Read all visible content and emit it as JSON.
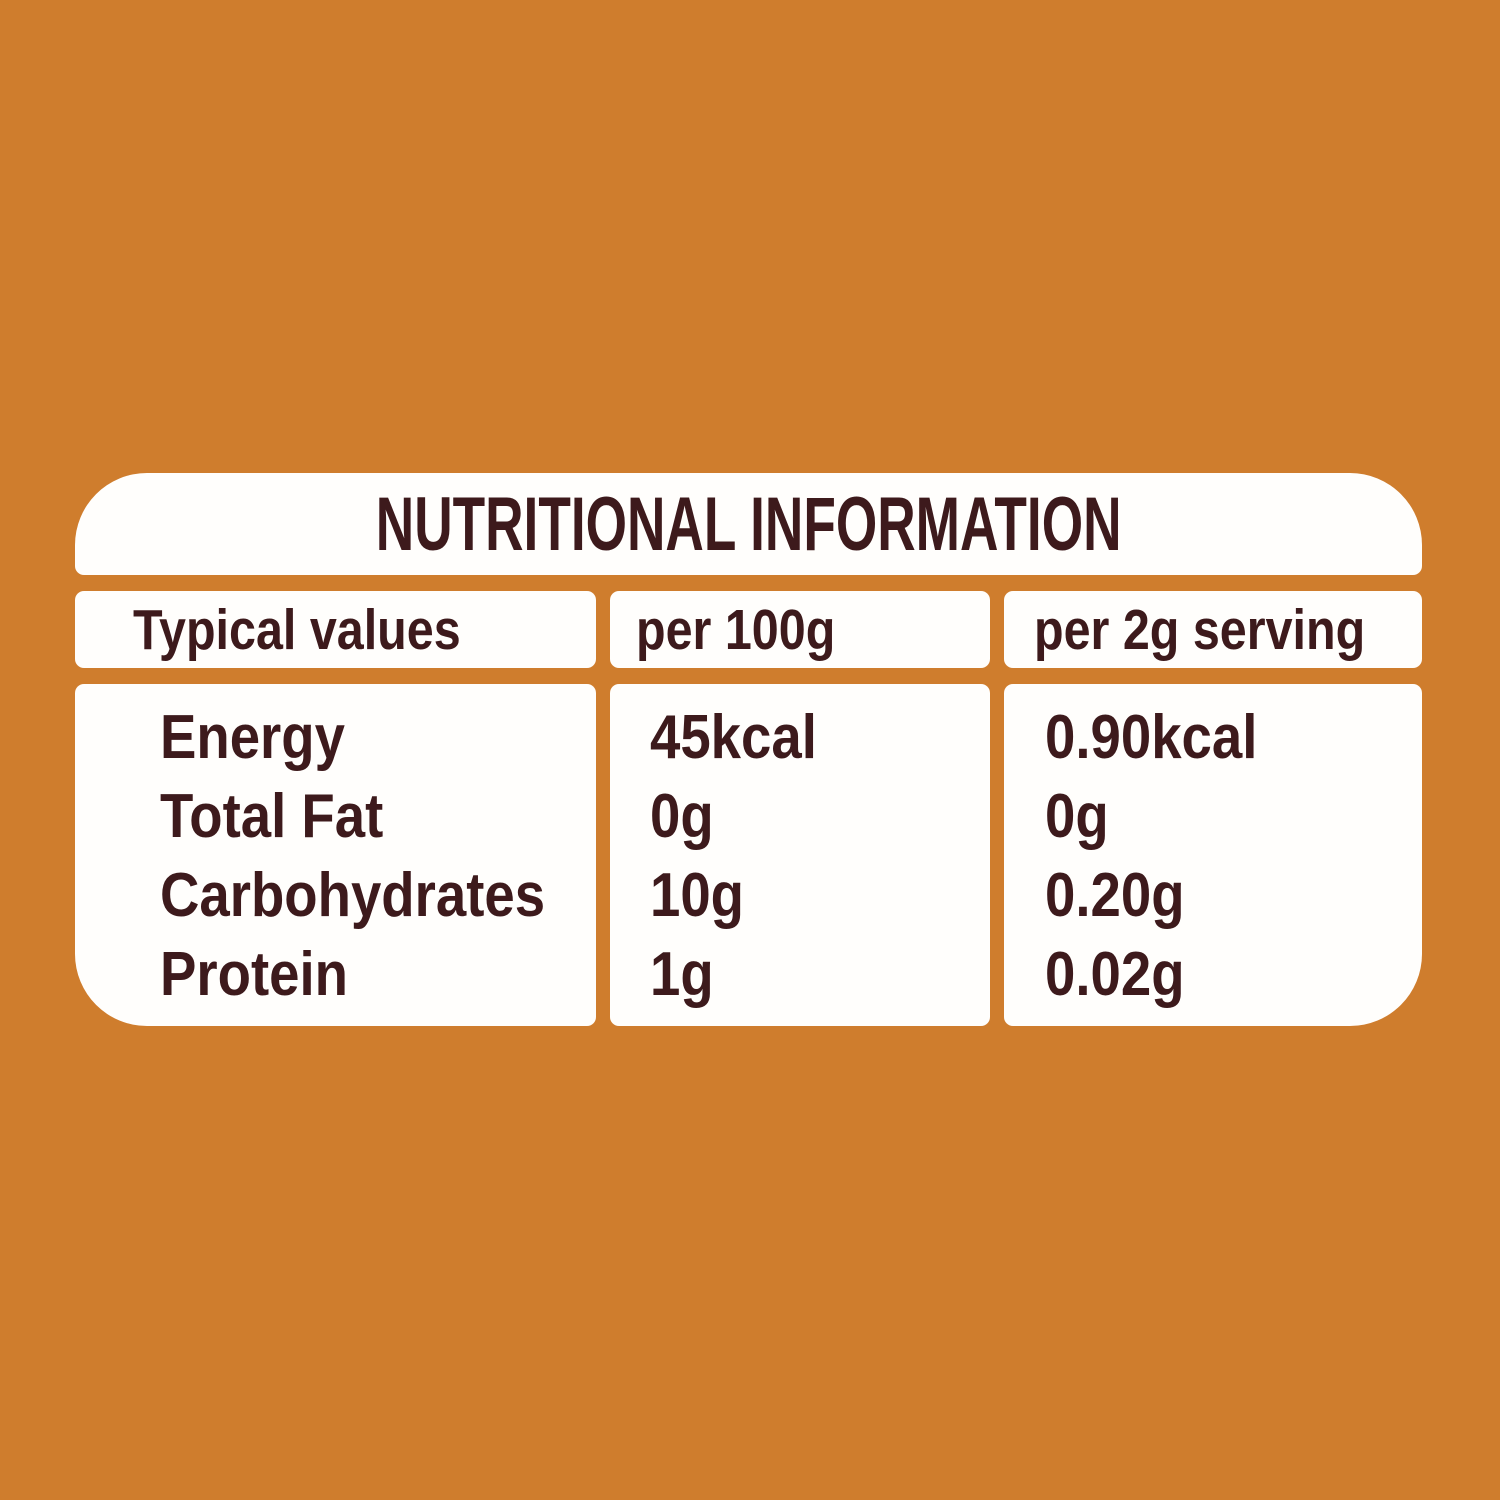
{
  "colors": {
    "background": "#CF7D2D",
    "card": "#FFFEFC",
    "text": "#3D1A1C"
  },
  "nutrition_table": {
    "title": "NUTRITIONAL INFORMATION",
    "columns": {
      "c1": "Typical values",
      "c2": "per 100g",
      "c3": "per 2g serving"
    },
    "rows": [
      {
        "label": "Energy",
        "per_100g": "45kcal",
        "per_serving": "0.90kcal"
      },
      {
        "label": "Total Fat",
        "per_100g": "0g",
        "per_serving": "0g"
      },
      {
        "label": "Carbohydrates",
        "per_100g": "10g",
        "per_serving": "0.20g"
      },
      {
        "label": "Protein",
        "per_100g": "1g",
        "per_serving": "0.02g"
      }
    ]
  }
}
